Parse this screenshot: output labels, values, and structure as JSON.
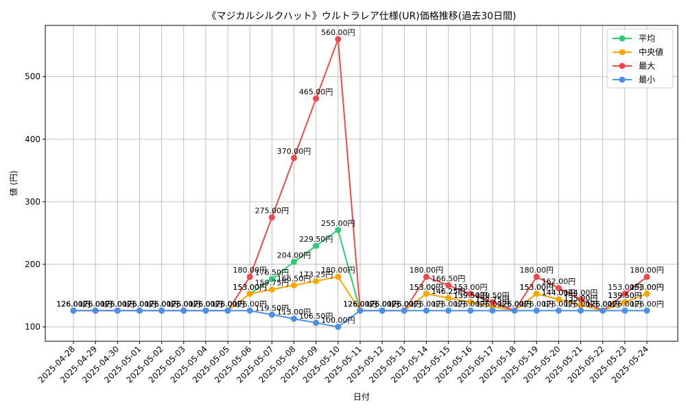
{
  "chart_data": {
    "type": "line",
    "title": "《マジカルシルクハット》ウルトラレア仕様(UR)価格推移(過去30日間)",
    "xlabel": "日付",
    "ylabel": "値 (円)",
    "ylim": [
      77,
      582
    ],
    "yticks": [
      100,
      200,
      300,
      400,
      500
    ],
    "grid": true,
    "legend_position": "top-right",
    "value_suffix": "円",
    "categories": [
      "2025-04-28",
      "2025-04-29",
      "2025-04-30",
      "2025-05-01",
      "2025-05-02",
      "2025-05-03",
      "2025-05-04",
      "2025-05-05",
      "2025-05-06",
      "2025-05-07",
      "2025-05-08",
      "2025-05-09",
      "2025-05-10",
      "2025-05-11",
      "2025-05-12",
      "2025-05-13",
      "2025-05-14",
      "2025-05-15",
      "2025-05-16",
      "2025-05-17",
      "2025-05-18",
      "2025-05-19",
      "2025-05-20",
      "2025-05-21",
      "2025-05-22",
      "2025-05-23",
      "2025-05-24"
    ],
    "series": [
      {
        "name": "平均",
        "color": "#2ecc71",
        "values": [
          126,
          126,
          126,
          126,
          126,
          126,
          126,
          126,
          153,
          176.5,
          204,
          229.5,
          255,
          126,
          126,
          126,
          153,
          146.25,
          139.5,
          132.75,
          126,
          153,
          144,
          135,
          126,
          139.5,
          153
        ]
      },
      {
        "name": "中央値",
        "color": "#ffa500",
        "values": [
          126,
          126,
          126,
          126,
          126,
          126,
          126,
          126,
          153,
          159.75,
          166.5,
          173.25,
          180,
          126,
          126,
          126,
          153,
          146.25,
          139.5,
          132.75,
          126,
          153,
          144,
          135,
          126,
          139.5,
          153
        ]
      },
      {
        "name": "最大",
        "color": "#f04848",
        "values": [
          126,
          126,
          126,
          126,
          126,
          126,
          126,
          126,
          180,
          275,
          370,
          465,
          560,
          126,
          126,
          126,
          180,
          166.5,
          153,
          139.5,
          126,
          180,
          162,
          144,
          126,
          153,
          180
        ]
      },
      {
        "name": "最小",
        "color": "#4a90e8",
        "values": [
          126,
          126,
          126,
          126,
          126,
          126,
          126,
          126,
          126,
          119.5,
          113,
          106.5,
          100,
          126,
          126,
          126,
          126,
          126,
          126,
          126,
          126,
          126,
          126,
          126,
          126,
          126,
          126
        ]
      }
    ]
  }
}
